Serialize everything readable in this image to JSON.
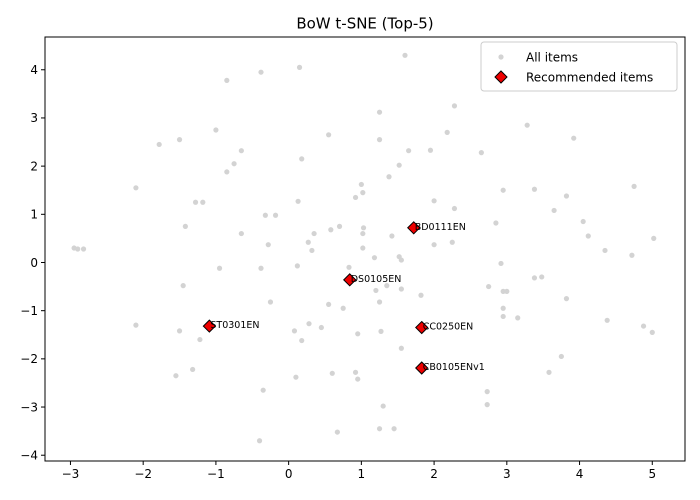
{
  "chart_data": {
    "type": "scatter",
    "title": "BoW t-SNE (Top-5)",
    "xlabel": "",
    "ylabel": "",
    "xlim": [
      -3.35,
      5.45
    ],
    "ylim": [
      -4.12,
      4.68
    ],
    "xticks": [
      -3,
      -2,
      -1,
      0,
      1,
      2,
      3,
      4,
      5
    ],
    "yticks": [
      -4,
      -3,
      -2,
      -1,
      0,
      1,
      2,
      3,
      4
    ],
    "grid": false,
    "legend_position": "upper right",
    "series": [
      {
        "name": "All items",
        "color": "#d3d3d3",
        "marker": "circle",
        "points": [
          [
            1.6,
            4.3
          ],
          [
            0.15,
            4.05
          ],
          [
            -0.85,
            3.78
          ],
          [
            -0.38,
            3.95
          ],
          [
            2.28,
            3.25
          ],
          [
            1.25,
            3.12
          ],
          [
            -1.78,
            2.45
          ],
          [
            -1.5,
            2.55
          ],
          [
            -1.0,
            2.75
          ],
          [
            0.55,
            2.65
          ],
          [
            1.25,
            2.55
          ],
          [
            2.18,
            2.7
          ],
          [
            3.28,
            2.85
          ],
          [
            3.92,
            2.58
          ],
          [
            -0.65,
            2.32
          ],
          [
            -0.75,
            2.05
          ],
          [
            -0.85,
            1.88
          ],
          [
            0.18,
            2.15
          ],
          [
            1.65,
            2.32
          ],
          [
            1.95,
            2.33
          ],
          [
            1.52,
            2.02
          ],
          [
            2.65,
            2.28
          ],
          [
            -2.1,
            1.55
          ],
          [
            1.0,
            1.62
          ],
          [
            1.38,
            1.78
          ],
          [
            4.75,
            1.58
          ],
          [
            1.02,
            1.45
          ],
          [
            0.92,
            1.35
          ],
          [
            2.95,
            1.5
          ],
          [
            3.38,
            1.52
          ],
          [
            3.82,
            1.38
          ],
          [
            -1.28,
            1.25
          ],
          [
            -1.18,
            1.25
          ],
          [
            0.13,
            1.27
          ],
          [
            2.0,
            1.28
          ],
          [
            2.28,
            1.12
          ],
          [
            3.65,
            1.08
          ],
          [
            -0.32,
            0.98
          ],
          [
            -0.18,
            0.98
          ],
          [
            4.05,
            0.85
          ],
          [
            2.85,
            0.82
          ],
          [
            -1.42,
            0.75
          ],
          [
            0.7,
            0.75
          ],
          [
            1.03,
            0.72
          ],
          [
            0.58,
            0.68
          ],
          [
            0.35,
            0.6
          ],
          [
            1.02,
            0.6
          ],
          [
            -0.65,
            0.6
          ],
          [
            1.42,
            0.55
          ],
          [
            4.12,
            0.55
          ],
          [
            5.02,
            0.5
          ],
          [
            0.27,
            0.42
          ],
          [
            -0.28,
            0.37
          ],
          [
            2.0,
            0.37
          ],
          [
            2.25,
            0.42
          ],
          [
            1.02,
            0.3
          ],
          [
            0.32,
            0.25
          ],
          [
            -2.95,
            0.3
          ],
          [
            -2.9,
            0.28
          ],
          [
            -2.82,
            0.28
          ],
          [
            4.35,
            0.25
          ],
          [
            1.52,
            0.12
          ],
          [
            4.72,
            0.15
          ],
          [
            1.55,
            0.05
          ],
          [
            1.18,
            0.1
          ],
          [
            0.12,
            -0.07
          ],
          [
            -0.95,
            -0.12
          ],
          [
            -0.38,
            -0.12
          ],
          [
            0.83,
            -0.1
          ],
          [
            2.92,
            -0.02
          ],
          [
            3.38,
            -0.32
          ],
          [
            3.48,
            -0.3
          ],
          [
            1.35,
            -0.48
          ],
          [
            -1.45,
            -0.48
          ],
          [
            2.75,
            -0.5
          ],
          [
            1.2,
            -0.58
          ],
          [
            1.55,
            -0.55
          ],
          [
            2.95,
            -0.6
          ],
          [
            3.0,
            -0.6
          ],
          [
            1.82,
            -0.68
          ],
          [
            3.82,
            -0.75
          ],
          [
            -0.25,
            -0.82
          ],
          [
            1.25,
            -0.82
          ],
          [
            0.55,
            -0.87
          ],
          [
            0.75,
            -0.95
          ],
          [
            2.95,
            -0.95
          ],
          [
            3.15,
            -1.15
          ],
          [
            2.95,
            -1.12
          ],
          [
            4.38,
            -1.2
          ],
          [
            -2.1,
            -1.3
          ],
          [
            0.28,
            -1.27
          ],
          [
            4.88,
            -1.32
          ],
          [
            0.45,
            -1.35
          ],
          [
            5.0,
            -1.45
          ],
          [
            -1.5,
            -1.42
          ],
          [
            0.08,
            -1.42
          ],
          [
            1.27,
            -1.43
          ],
          [
            0.95,
            -1.48
          ],
          [
            -1.22,
            -1.6
          ],
          [
            0.18,
            -1.62
          ],
          [
            1.55,
            -1.78
          ],
          [
            3.75,
            -1.95
          ],
          [
            -1.32,
            -2.22
          ],
          [
            -1.55,
            -2.35
          ],
          [
            0.6,
            -2.3
          ],
          [
            0.92,
            -2.28
          ],
          [
            3.58,
            -2.28
          ],
          [
            0.1,
            -2.38
          ],
          [
            0.95,
            -2.42
          ],
          [
            -0.35,
            -2.65
          ],
          [
            2.73,
            -2.68
          ],
          [
            2.73,
            -2.95
          ],
          [
            1.3,
            -2.98
          ],
          [
            1.25,
            -3.45
          ],
          [
            1.45,
            -3.45
          ],
          [
            0.67,
            -3.52
          ],
          [
            -0.4,
            -3.7
          ]
        ]
      },
      {
        "name": "Recommended items",
        "color": "#ee0000",
        "marker": "diamond",
        "points": [
          {
            "x": 1.72,
            "y": 0.72,
            "label": "BD0111EN"
          },
          {
            "x": 0.84,
            "y": -0.36,
            "label": "DS0105EN"
          },
          {
            "x": -1.09,
            "y": -1.32,
            "label": "ST0301EN"
          },
          {
            "x": 1.83,
            "y": -1.35,
            "label": "CC0250EN"
          },
          {
            "x": 1.83,
            "y": -2.19,
            "label": "CB0105ENv1"
          }
        ]
      }
    ]
  }
}
